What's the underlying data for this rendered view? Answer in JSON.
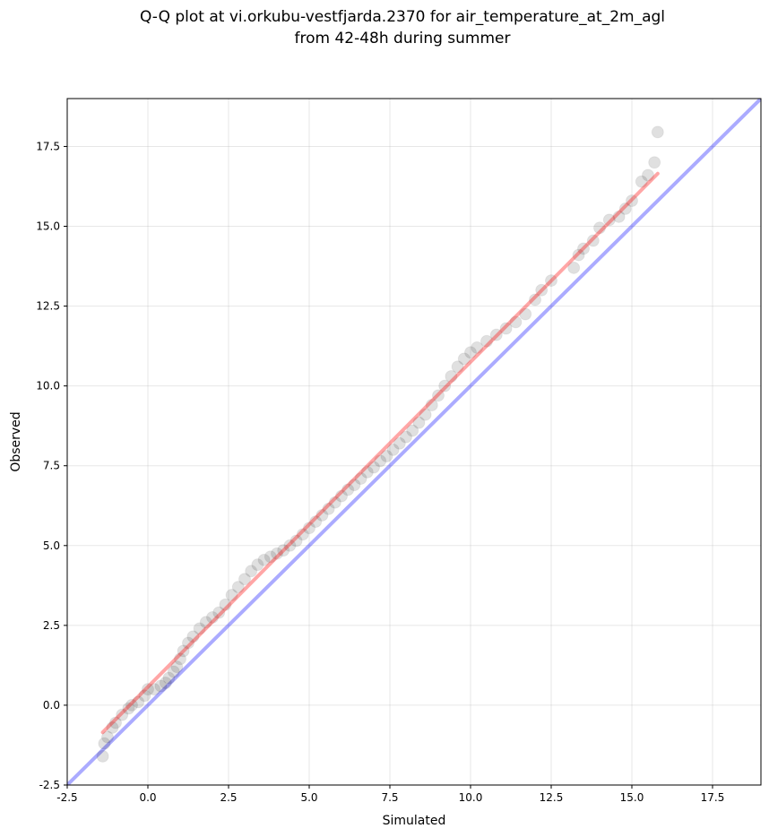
{
  "chart_data": {
    "type": "scatter",
    "title_lines": [
      "Q-Q plot at vi.orkubu-vestfjarda.2370 for air_temperature_at_2m_agl",
      "from 42-48h during summer"
    ],
    "xlabel": "Simulated",
    "ylabel": "Observed",
    "xlim": [
      -2.5,
      19.0
    ],
    "ylim": [
      -2.5,
      19.0
    ],
    "xticks": [
      "-2.5",
      "0.0",
      "2.5",
      "5.0",
      "7.5",
      "10.0",
      "12.5",
      "15.0",
      "17.5"
    ],
    "yticks": [
      "-2.5",
      "0.0",
      "2.5",
      "5.0",
      "7.5",
      "10.0",
      "12.5",
      "15.0",
      "17.5"
    ],
    "grid": true,
    "colors": {
      "points": "#000000",
      "fit_line": "#ff0000",
      "identity_line": "#0000ff"
    },
    "series": [
      {
        "kind": "quantile_points",
        "points": [
          [
            -1.4,
            -1.6
          ],
          [
            -1.35,
            -1.2
          ],
          [
            -1.25,
            -1.0
          ],
          [
            -1.1,
            -0.7
          ],
          [
            -1.0,
            -0.55
          ],
          [
            -0.8,
            -0.3
          ],
          [
            -0.6,
            -0.1
          ],
          [
            -0.5,
            0.0
          ],
          [
            -0.3,
            0.1
          ],
          [
            -0.1,
            0.3
          ],
          [
            0.0,
            0.5
          ],
          [
            0.2,
            0.5
          ],
          [
            0.4,
            0.6
          ],
          [
            0.55,
            0.7
          ],
          [
            0.65,
            0.85
          ],
          [
            0.8,
            1.05
          ],
          [
            0.9,
            1.2
          ],
          [
            1.0,
            1.45
          ],
          [
            1.1,
            1.7
          ],
          [
            1.25,
            1.95
          ],
          [
            1.4,
            2.15
          ],
          [
            1.6,
            2.4
          ],
          [
            1.8,
            2.6
          ],
          [
            2.0,
            2.75
          ],
          [
            2.2,
            2.9
          ],
          [
            2.4,
            3.15
          ],
          [
            2.6,
            3.45
          ],
          [
            2.8,
            3.7
          ],
          [
            3.0,
            3.95
          ],
          [
            3.2,
            4.2
          ],
          [
            3.4,
            4.4
          ],
          [
            3.6,
            4.55
          ],
          [
            3.8,
            4.65
          ],
          [
            4.0,
            4.75
          ],
          [
            4.2,
            4.85
          ],
          [
            4.4,
            5.0
          ],
          [
            4.6,
            5.15
          ],
          [
            4.8,
            5.35
          ],
          [
            5.0,
            5.55
          ],
          [
            5.2,
            5.75
          ],
          [
            5.4,
            5.95
          ],
          [
            5.6,
            6.15
          ],
          [
            5.8,
            6.35
          ],
          [
            6.0,
            6.55
          ],
          [
            6.2,
            6.75
          ],
          [
            6.4,
            6.9
          ],
          [
            6.6,
            7.1
          ],
          [
            6.8,
            7.3
          ],
          [
            7.0,
            7.45
          ],
          [
            7.2,
            7.65
          ],
          [
            7.4,
            7.8
          ],
          [
            7.6,
            8.0
          ],
          [
            7.8,
            8.2
          ],
          [
            8.0,
            8.4
          ],
          [
            8.2,
            8.6
          ],
          [
            8.4,
            8.85
          ],
          [
            8.6,
            9.1
          ],
          [
            8.8,
            9.4
          ],
          [
            9.0,
            9.7
          ],
          [
            9.2,
            10.0
          ],
          [
            9.4,
            10.3
          ],
          [
            9.6,
            10.6
          ],
          [
            9.8,
            10.85
          ],
          [
            10.0,
            11.05
          ],
          [
            10.2,
            11.2
          ],
          [
            10.5,
            11.4
          ],
          [
            10.8,
            11.6
          ],
          [
            11.1,
            11.8
          ],
          [
            11.4,
            12.0
          ],
          [
            11.7,
            12.25
          ],
          [
            12.0,
            12.7
          ],
          [
            12.2,
            13.0
          ],
          [
            12.5,
            13.3
          ],
          [
            13.2,
            13.7
          ],
          [
            13.35,
            14.1
          ],
          [
            13.5,
            14.3
          ],
          [
            13.8,
            14.55
          ],
          [
            14.0,
            14.95
          ],
          [
            14.3,
            15.2
          ],
          [
            14.6,
            15.3
          ],
          [
            14.8,
            15.55
          ],
          [
            15.0,
            15.8
          ],
          [
            15.3,
            16.4
          ],
          [
            15.5,
            16.6
          ],
          [
            15.7,
            17.0
          ],
          [
            15.8,
            17.95
          ]
        ]
      },
      {
        "kind": "fit_line",
        "points": [
          [
            -1.4,
            -0.85
          ],
          [
            15.8,
            16.65
          ]
        ]
      },
      {
        "kind": "identity_line",
        "points": [
          [
            -2.5,
            -2.5
          ],
          [
            19.0,
            19.0
          ]
        ]
      }
    ]
  }
}
